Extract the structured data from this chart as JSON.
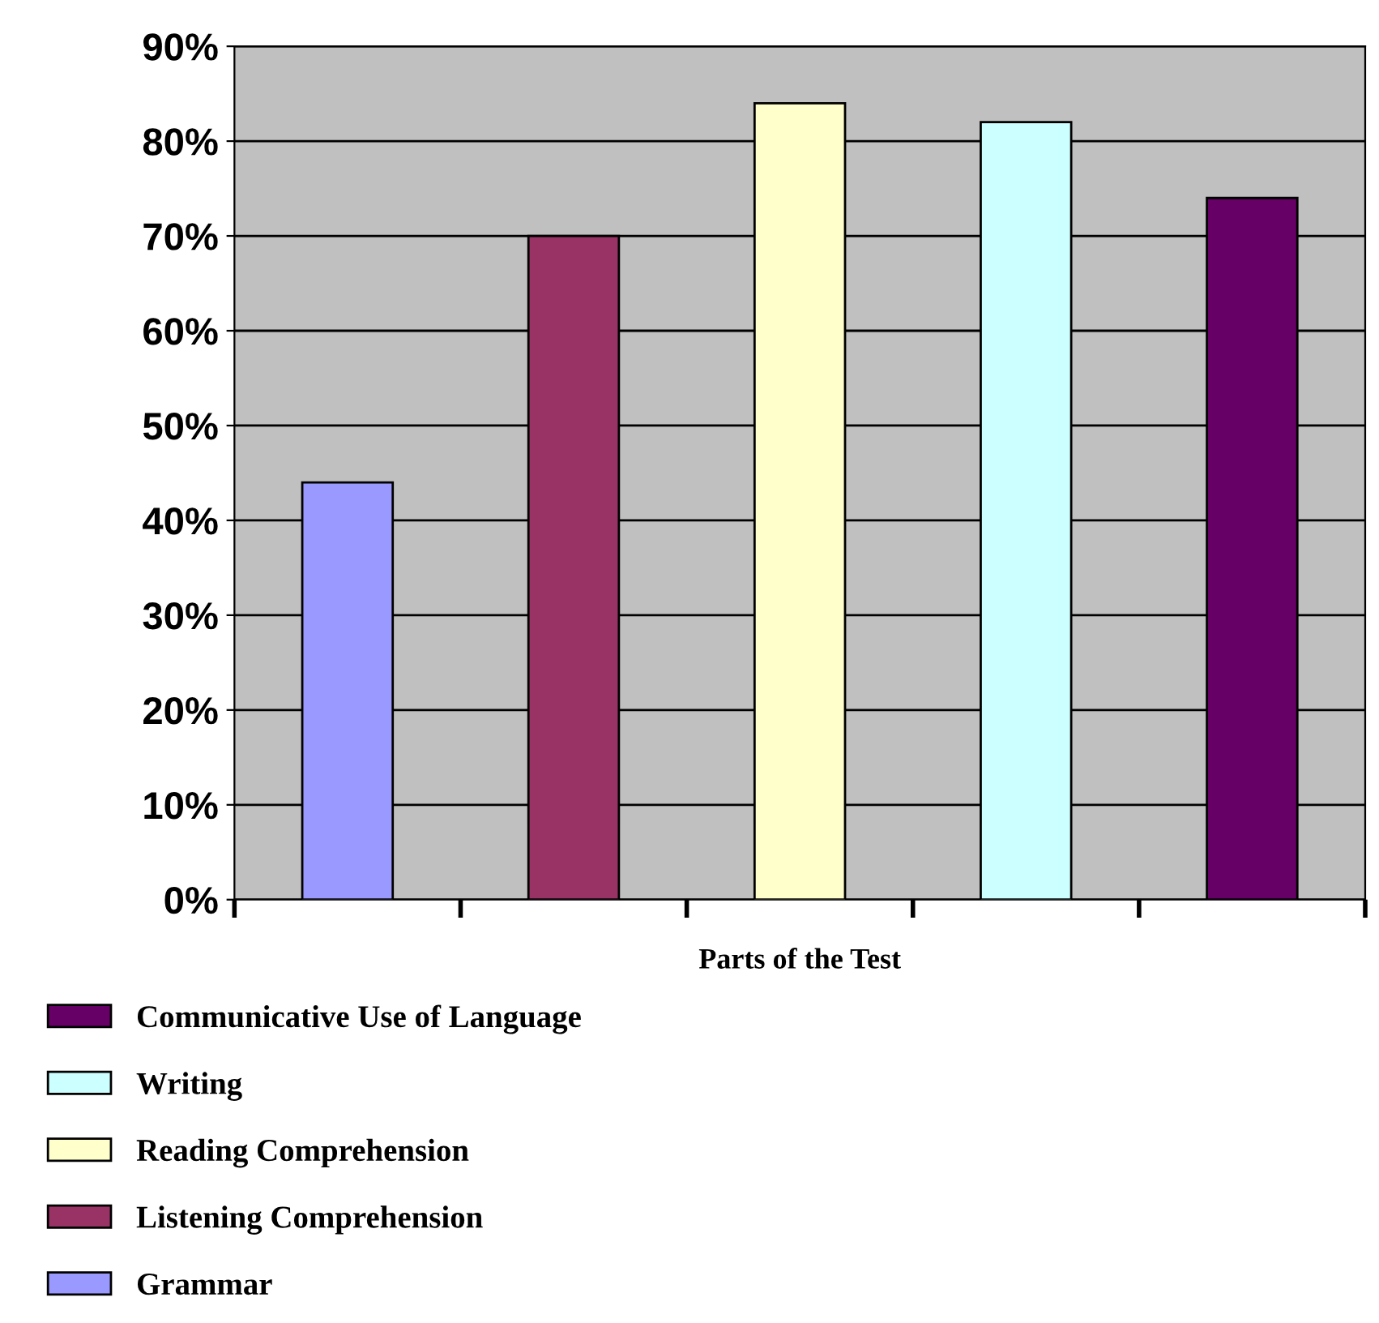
{
  "chart_data": {
    "type": "bar",
    "xlabel": "Parts of the Test",
    "categories": [
      null,
      null,
      null,
      null,
      null
    ],
    "series": [
      {
        "name": "Grammar",
        "color": "#9999ff",
        "values": [
          44,
          null,
          null,
          null,
          null
        ]
      },
      {
        "name": "Listening Comprehension",
        "color": "#993366",
        "values": [
          null,
          70,
          null,
          null,
          null
        ]
      },
      {
        "name": "Reading Comprehension",
        "color": "#ffffcc",
        "values": [
          null,
          null,
          84,
          null,
          null
        ]
      },
      {
        "name": "Writing",
        "color": "#ccffff",
        "values": [
          null,
          null,
          null,
          82,
          null
        ]
      },
      {
        "name": "Communicative Use of Language",
        "color": "#660066",
        "values": [
          null,
          null,
          null,
          null,
          74
        ]
      }
    ],
    "ylim": [
      0,
      90
    ],
    "yticks": [
      {
        "value": 0,
        "label": "0%"
      },
      {
        "value": 10,
        "label": "10%"
      },
      {
        "value": 20,
        "label": "20%"
      },
      {
        "value": 30,
        "label": "30%"
      },
      {
        "value": 40,
        "label": "40%"
      },
      {
        "value": 50,
        "label": "50%"
      },
      {
        "value": 60,
        "label": "60%"
      },
      {
        "value": 70,
        "label": "70%"
      },
      {
        "value": 80,
        "label": "80%"
      },
      {
        "value": 90,
        "label": "90%"
      }
    ],
    "grid": "y",
    "legend": "bottom"
  }
}
